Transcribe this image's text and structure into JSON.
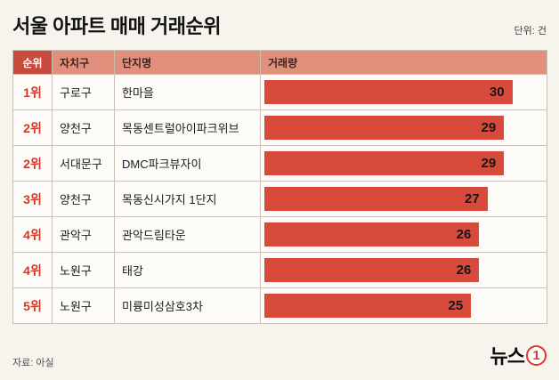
{
  "title": "서울 아파트 매매 거래순위",
  "unit_label": "단위: 건",
  "source": "자료: 아실",
  "logo": {
    "text": "뉴스",
    "badge": "1"
  },
  "colors": {
    "page_bg": "#f7f4ee",
    "header_rank_bg": "#c74a3c",
    "header_bg": "#e2907e",
    "bar": "#d84b3c",
    "rank_text": "#cf3a2a",
    "logo_red": "#e0362c"
  },
  "table": {
    "headers": {
      "rank": "순위",
      "district": "자치구",
      "complex": "단지명",
      "volume": "거래량"
    },
    "rows": [
      {
        "rank": "1위",
        "district": "구로구",
        "complex": "한마을",
        "volume": 30
      },
      {
        "rank": "2위",
        "district": "양천구",
        "complex": "목동센트럴아이파크위브",
        "volume": 29
      },
      {
        "rank": "2위",
        "district": "서대문구",
        "complex": "DMC파크뷰자이",
        "volume": 29
      },
      {
        "rank": "3위",
        "district": "양천구",
        "complex": "목동신시가지 1단지",
        "volume": 27
      },
      {
        "rank": "4위",
        "district": "관악구",
        "complex": "관악드림타운",
        "volume": 26
      },
      {
        "rank": "4위",
        "district": "노원구",
        "complex": "태강",
        "volume": 26
      },
      {
        "rank": "5위",
        "district": "노원구",
        "complex": "미륭미성삼호3차",
        "volume": 25
      }
    ]
  },
  "chart_data": {
    "type": "bar",
    "orientation": "horizontal",
    "title": "서울 아파트 매매 거래순위",
    "unit": "건",
    "categories": [
      "한마을",
      "목동센트럴아이파크위브",
      "DMC파크뷰자이",
      "목동신시가지 1단지",
      "관악드림타운",
      "태강",
      "미륭미성삼호3차"
    ],
    "districts": [
      "구로구",
      "양천구",
      "서대문구",
      "양천구",
      "관악구",
      "노원구",
      "노원구"
    ],
    "ranks": [
      "1위",
      "2위",
      "2위",
      "3위",
      "4위",
      "4위",
      "5위"
    ],
    "values": [
      30,
      29,
      29,
      27,
      26,
      26,
      25
    ],
    "xlabel": "거래량",
    "ylabel": "단지명",
    "xlim": [
      0,
      30
    ],
    "grid": false,
    "legend": "none",
    "bar_color": "#d84b3c",
    "source": "아실"
  }
}
